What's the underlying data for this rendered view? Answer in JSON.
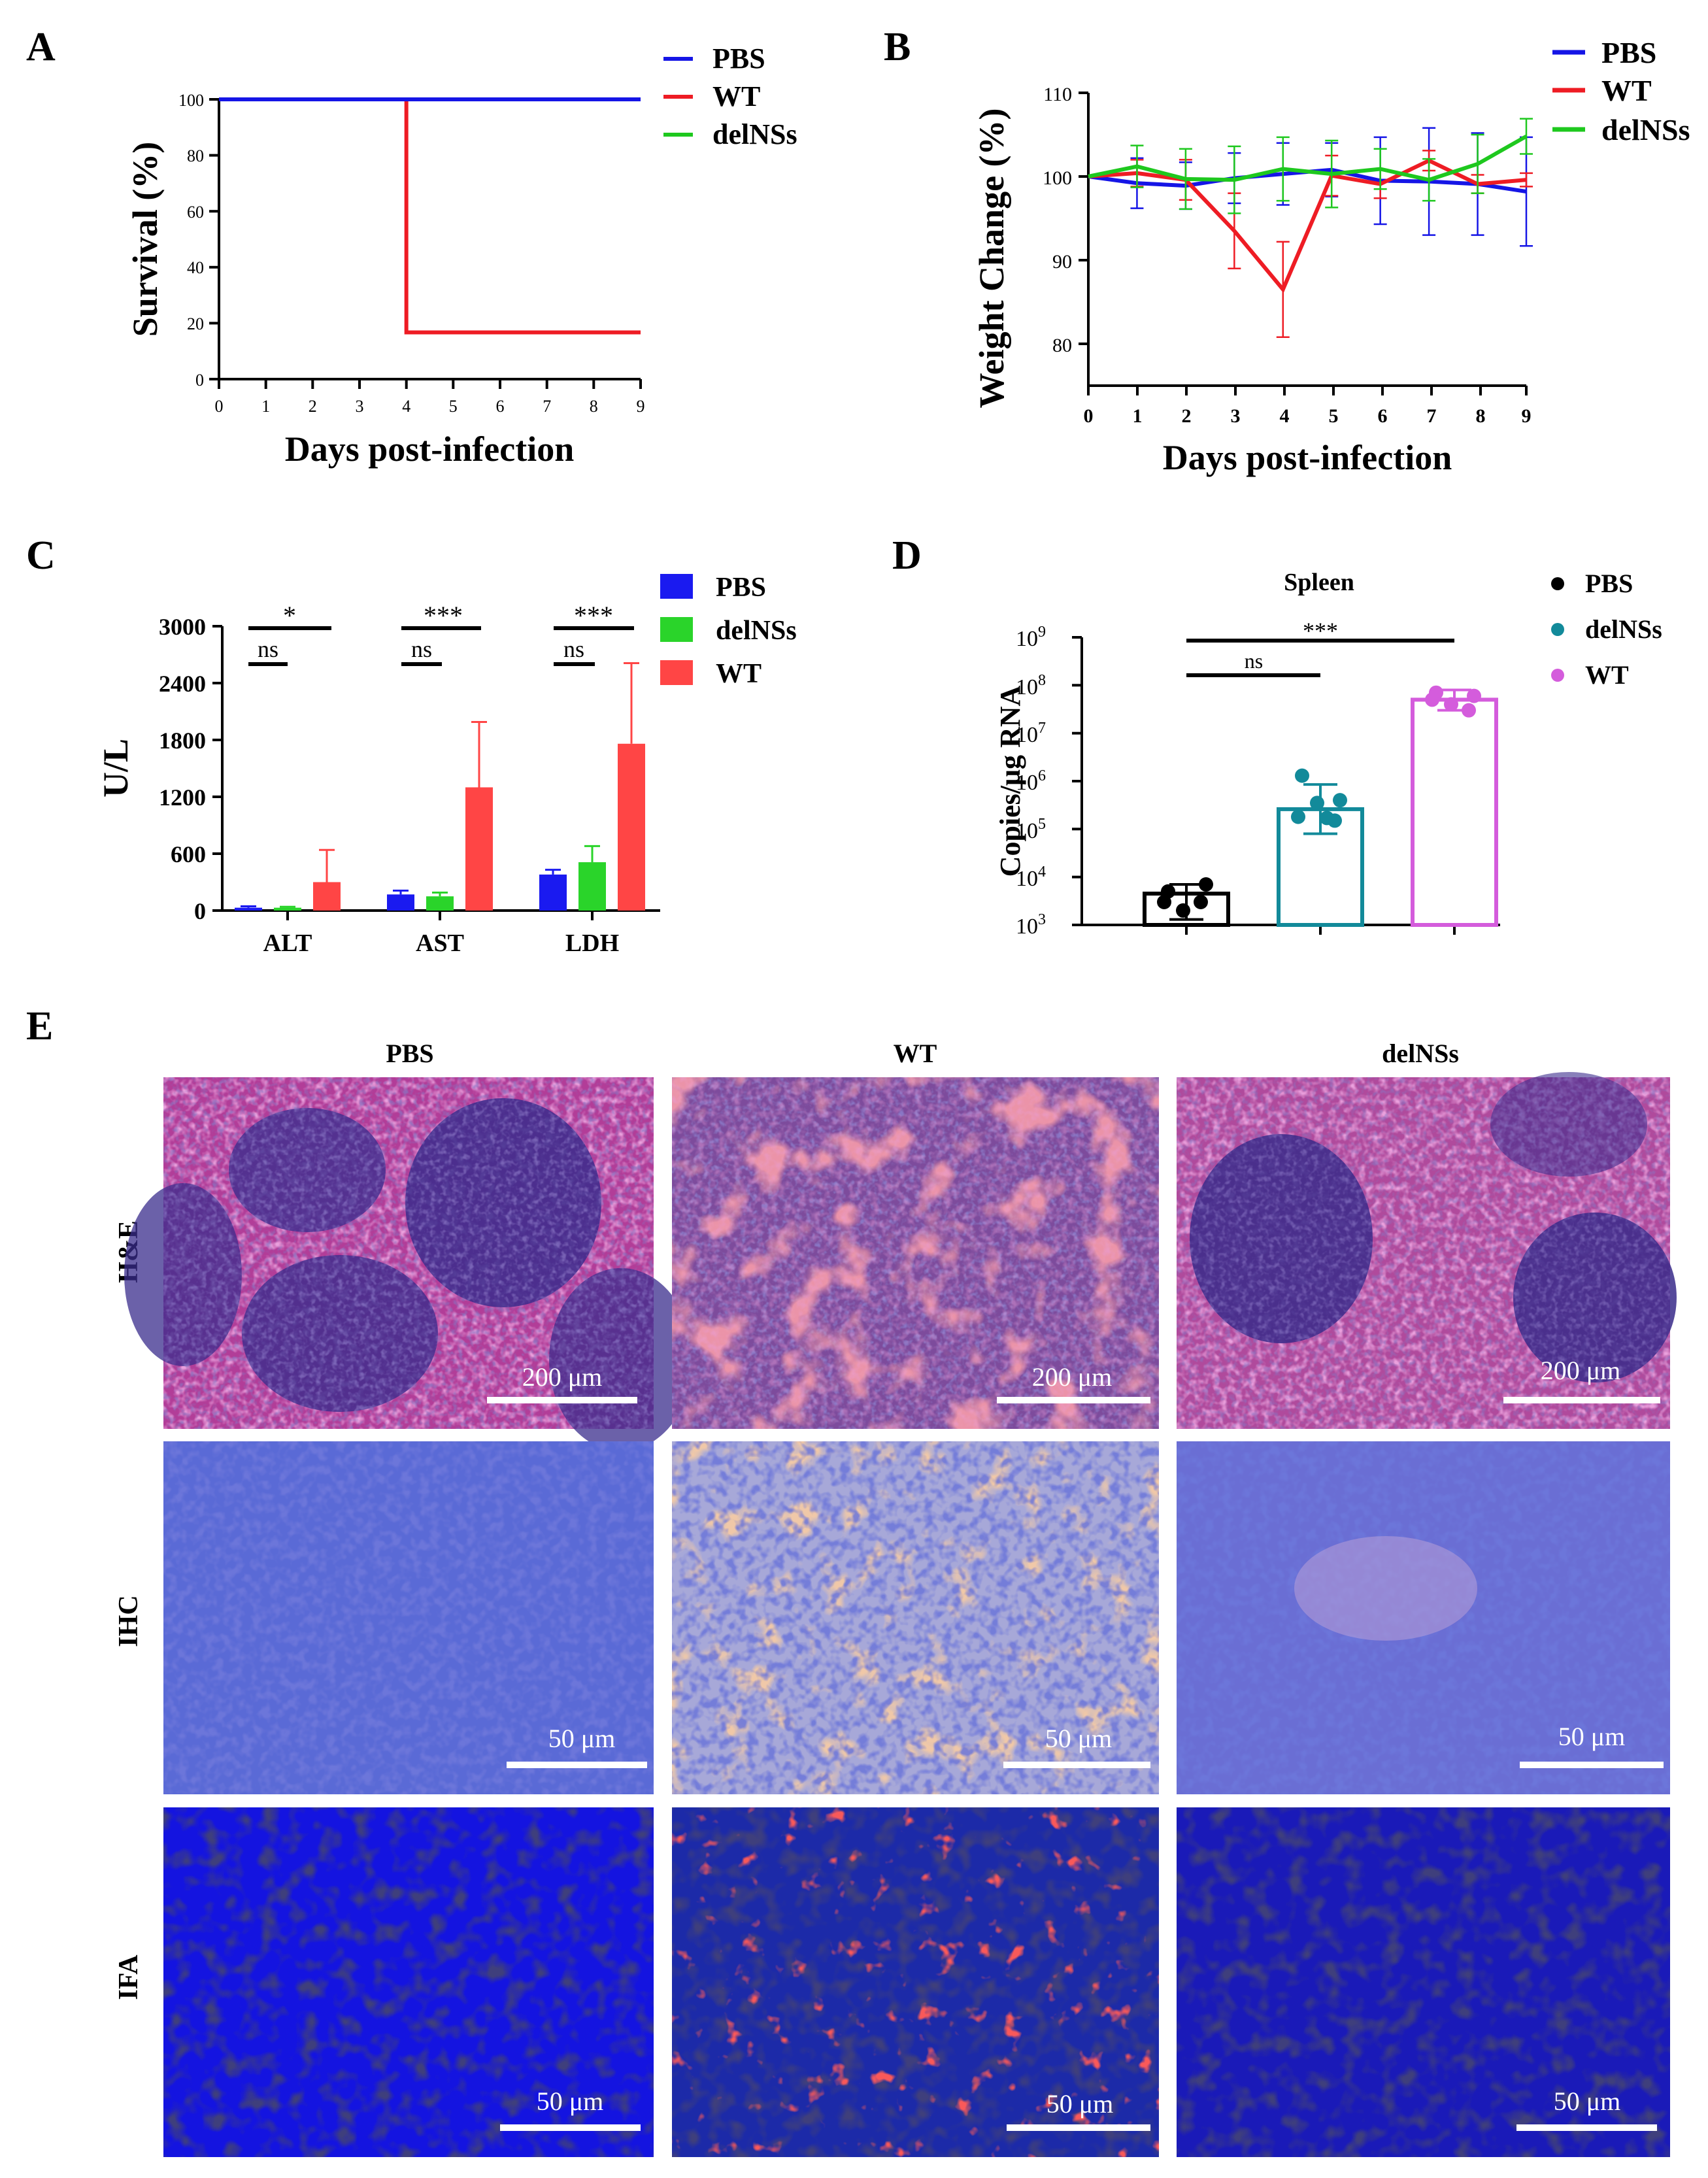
{
  "panel_labels": {
    "a": "A",
    "b": "B",
    "c": "C",
    "d": "D",
    "e": "E"
  },
  "colors": {
    "pbs": "#1515e6",
    "wt": "#ee1c24",
    "delnss": "#1ec81e",
    "bar_pbs": "#1a1af0",
    "bar_delnss": "#2ad42a",
    "bar_wt": "#ff4545",
    "dot_pbs": "#000000",
    "dot_delnss": "#128a9a",
    "dot_wt": "#d45cdc"
  },
  "chart_data": [
    {
      "id": "A",
      "type": "line",
      "title": "",
      "xlabel": "Days post-infection",
      "ylabel": "Survival (%)",
      "xlim": [
        0,
        9
      ],
      "ylim": [
        0,
        100
      ],
      "xticks": [
        "0",
        "1",
        "2",
        "3",
        "4",
        "5",
        "6",
        "7",
        "8",
        "9"
      ],
      "yticks": [
        "0",
        "20",
        "40",
        "60",
        "80",
        "100"
      ],
      "legend": [
        "PBS",
        "WT",
        "delNSs"
      ],
      "series": [
        {
          "name": "PBS",
          "x": [
            0,
            9
          ],
          "y": [
            100,
            100
          ],
          "step": true
        },
        {
          "name": "WT",
          "x": [
            0,
            4,
            4,
            9
          ],
          "y": [
            100,
            100,
            16.7,
            16.7
          ],
          "step": true
        },
        {
          "name": "delNSs",
          "x": [
            0,
            9
          ],
          "y": [
            100,
            100
          ],
          "step": true
        }
      ]
    },
    {
      "id": "B",
      "type": "line",
      "title": "",
      "xlabel": "Days post-infection",
      "ylabel": "Weight Change (%)",
      "xlim": [
        0,
        9
      ],
      "ylim": [
        75,
        110
      ],
      "xticks": [
        "0",
        "1",
        "2",
        "3",
        "4",
        "5",
        "6",
        "7",
        "8",
        "9"
      ],
      "yticks": [
        "80",
        "90",
        "100",
        "110"
      ],
      "legend": [
        "PBS",
        "WT",
        "delNSs"
      ],
      "series": [
        {
          "name": "PBS",
          "x": [
            0,
            1,
            2,
            3,
            4,
            5,
            6,
            7,
            8,
            9
          ],
          "y": [
            100,
            99.2,
            98.9,
            99.8,
            100.3,
            100.8,
            99.5,
            99.4,
            99.1,
            98.2
          ],
          "err": [
            0,
            3,
            2.8,
            3,
            3.7,
            3.2,
            5.2,
            6.4,
            6.1,
            6.5
          ]
        },
        {
          "name": "WT",
          "x": [
            0,
            1,
            2,
            3,
            4,
            5,
            6,
            7,
            8,
            9
          ],
          "y": [
            100,
            100.4,
            99.6,
            93.5,
            86.5,
            100.1,
            99.1,
            101.9,
            99.1,
            99.6
          ],
          "err": [
            0,
            1.6,
            2.4,
            4.5,
            5.7,
            2.4,
            1.7,
            1.2,
            1.1,
            0.8
          ]
        },
        {
          "name": "delNSs",
          "x": [
            0,
            1,
            2,
            3,
            4,
            5,
            6,
            7,
            8,
            9
          ],
          "y": [
            100,
            101.2,
            99.7,
            99.6,
            100.9,
            100.3,
            100.9,
            99.6,
            101.5,
            104.8
          ],
          "err": [
            0,
            2.5,
            3.6,
            4,
            3.8,
            4,
            2.4,
            2.5,
            3.5,
            2.1
          ]
        }
      ]
    },
    {
      "id": "C",
      "type": "bar",
      "title": "",
      "xlabel": "",
      "ylabel": "U/L",
      "ylim": [
        0,
        3000
      ],
      "yticks": [
        "0",
        "600",
        "1200",
        "1800",
        "2400",
        "3000"
      ],
      "categories": [
        "ALT",
        "AST",
        "LDH"
      ],
      "legend": [
        "PBS",
        "delNSs",
        "WT"
      ],
      "series": [
        {
          "name": "PBS",
          "values": [
            30,
            170,
            380
          ],
          "err": [
            15,
            40,
            50
          ]
        },
        {
          "name": "delNSs",
          "values": [
            30,
            150,
            510
          ],
          "err": [
            10,
            40,
            170
          ]
        },
        {
          "name": "WT",
          "values": [
            300,
            1300,
            1760
          ],
          "err": [
            340,
            690,
            850
          ]
        }
      ],
      "annotations": [
        {
          "category": "ALT",
          "wt_label": "*",
          "delnss_label": "ns"
        },
        {
          "category": "AST",
          "wt_label": "***",
          "delnss_label": "ns"
        },
        {
          "category": "LDH",
          "wt_label": "***",
          "delnss_label": "ns"
        }
      ]
    },
    {
      "id": "D",
      "type": "bar",
      "title": "Spleen",
      "xlabel": "",
      "ylabel": "Copies/μg RNA",
      "yscale": "log",
      "ylim": [
        1000,
        1000000000
      ],
      "yticks": [
        "10",
        "10",
        "10",
        "10",
        "10",
        "10",
        "10"
      ],
      "ytick_exponents": [
        "3",
        "4",
        "5",
        "6",
        "7",
        "8",
        "9"
      ],
      "categories": [
        "PBS",
        "delNSs",
        "WT"
      ],
      "legend": [
        "PBS",
        "delNSs",
        "WT"
      ],
      "series": [
        {
          "name": "PBS",
          "value": 4500,
          "err_high": 7000,
          "err_low": 1300,
          "points": [
            5000,
            7000,
            2000,
            3000,
            3000
          ]
        },
        {
          "name": "delNSs",
          "value": 260000,
          "err_high": 850000,
          "err_low": 80000,
          "points": [
            1300000,
            400000,
            350000,
            150000,
            180000,
            170000
          ]
        },
        {
          "name": "WT",
          "value": 50000000,
          "err_high": 80000000,
          "err_low": 30000000,
          "points": [
            70000000,
            60000000,
            40000000,
            30000000,
            50000000
          ]
        }
      ],
      "annotations": [
        {
          "from": "PBS",
          "to": "WT",
          "label": "***"
        },
        {
          "from": "PBS",
          "to": "delNSs",
          "label": "ns"
        }
      ]
    }
  ],
  "micrographs": {
    "columns": [
      "PBS",
      "WT",
      "delNSs"
    ],
    "rows": [
      "H&E",
      "IHC",
      "IFA"
    ],
    "scalebars": [
      [
        "200 μm",
        "200 μm",
        "200 μm"
      ],
      [
        "50 μm",
        "50 μm",
        "50 μm"
      ],
      [
        "50 μm",
        "50 μm",
        "50 μm"
      ]
    ]
  }
}
